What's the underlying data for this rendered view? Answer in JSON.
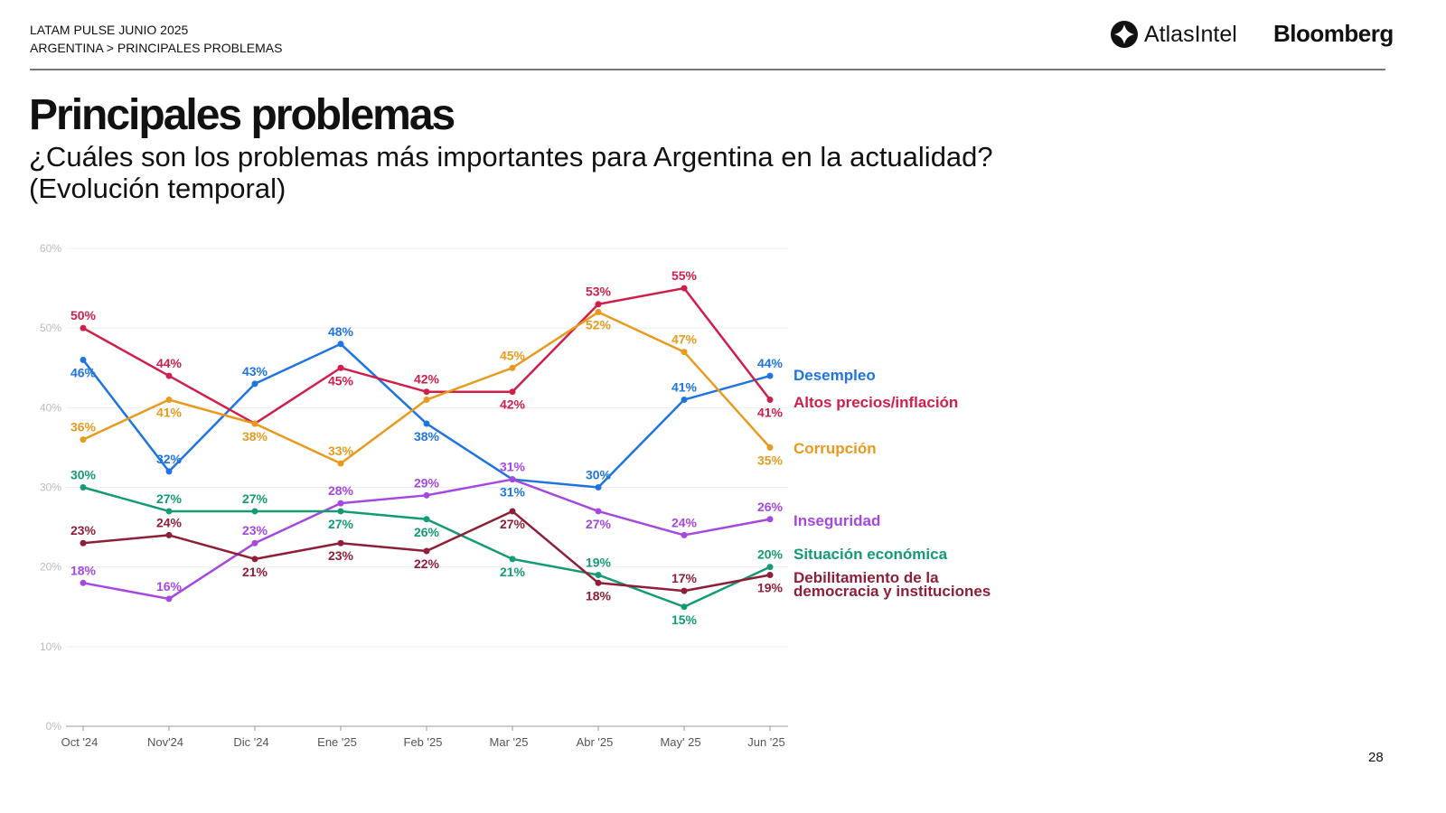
{
  "header": {
    "line1": "LATAM PULSE JUNIO 2025",
    "line2": "ARGENTINA > PRINCIPALES PROBLEMAS",
    "logo_atlas": "AtlasIntel",
    "logo_bloomberg": "Bloomberg"
  },
  "title": "Principales problemas",
  "subtitle_line1": "¿Cuáles son los problemas más importantes para Argentina en la actualidad?",
  "subtitle_line2": "(Evolución temporal)",
  "page_number": "28",
  "chart_data": {
    "type": "line",
    "title": "Principales problemas",
    "categories": [
      "Oct '24",
      "Nov'24",
      "Dic '24",
      "Ene '25",
      "Feb '25",
      "Mar '25",
      "Abr '25",
      "May' 25",
      "Jun '25"
    ],
    "y_ticks": [
      "0%",
      "10%",
      "20%",
      "30%",
      "40%",
      "50%",
      "60%"
    ],
    "ylim": [
      0,
      60
    ],
    "grid": true,
    "legend": "right-end-labels",
    "series": [
      {
        "name": "Desempleo",
        "color": "#1f74e0",
        "values": [
          46,
          32,
          43,
          48,
          38,
          31,
          30,
          41,
          44
        ]
      },
      {
        "name": "Altos precios/inflación",
        "color": "#d01e4b",
        "values": [
          50,
          44,
          38,
          45,
          42,
          42,
          53,
          55,
          41
        ]
      },
      {
        "name": "Corrupción",
        "color": "#e89a1f",
        "values": [
          36,
          41,
          38,
          33,
          41,
          45,
          52,
          47,
          35
        ]
      },
      {
        "name": "Inseguridad",
        "color": "#a548e0",
        "values": [
          18,
          16,
          23,
          28,
          29,
          31,
          27,
          24,
          26
        ]
      },
      {
        "name": "Situación económica",
        "color": "#149a74",
        "values": [
          30,
          27,
          27,
          27,
          26,
          21,
          19,
          15,
          20
        ]
      },
      {
        "name": "Debilitamiento de la democracia y instituciones",
        "name_line1": "Debilitamiento de la",
        "name_line2": "democracia y instituciones",
        "color": "#8e1f38",
        "values": [
          23,
          24,
          21,
          23,
          22,
          27,
          18,
          17,
          19
        ]
      }
    ]
  }
}
